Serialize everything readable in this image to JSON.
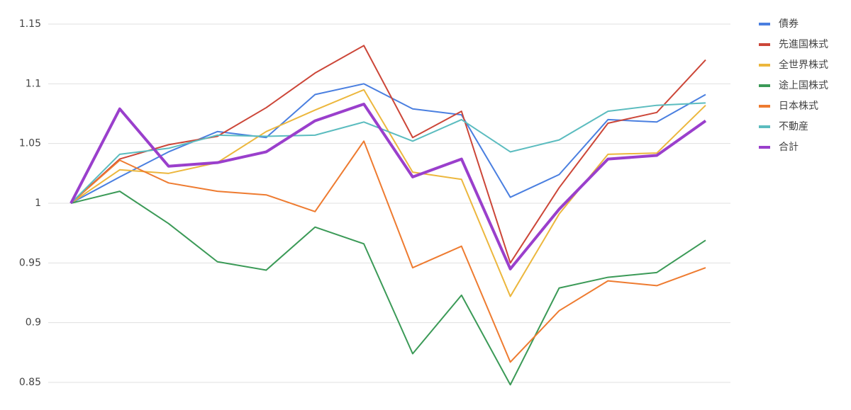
{
  "chart_data": {
    "type": "line",
    "categories": [
      null,
      null,
      null,
      null,
      null,
      null,
      null,
      null,
      null,
      null,
      null,
      null,
      null,
      null
    ],
    "series": [
      {
        "name": "債券",
        "color": "#4a7fe0",
        "width": 2,
        "values": [
          1.0,
          1.022,
          1.043,
          1.06,
          1.055,
          1.091,
          1.1,
          1.079,
          1.074,
          1.005,
          1.024,
          1.07,
          1.068,
          1.091
        ]
      },
      {
        "name": "先進国株式",
        "color": "#cc4638",
        "width": 2,
        "values": [
          1.0,
          1.037,
          1.049,
          1.056,
          1.08,
          1.109,
          1.132,
          1.055,
          1.077,
          0.95,
          1.013,
          1.067,
          1.076,
          1.12
        ]
      },
      {
        "name": "全世界株式",
        "color": "#ecb73d",
        "width": 2,
        "values": [
          1.0,
          1.028,
          1.025,
          1.034,
          1.06,
          1.078,
          1.095,
          1.026,
          1.02,
          0.922,
          0.991,
          1.041,
          1.042,
          1.082
        ]
      },
      {
        "name": "途上国株式",
        "color": "#3b9a57",
        "width": 2,
        "values": [
          1.0,
          1.01,
          0.983,
          0.951,
          0.944,
          0.98,
          0.966,
          0.874,
          0.923,
          0.848,
          0.929,
          0.938,
          0.942,
          0.969
        ]
      },
      {
        "name": "日本株式",
        "color": "#ee7b30",
        "width": 2,
        "values": [
          1.0,
          1.036,
          1.017,
          1.01,
          1.007,
          0.993,
          1.052,
          0.946,
          0.964,
          0.867,
          0.91,
          0.935,
          0.931,
          0.946
        ]
      },
      {
        "name": "不動産",
        "color": "#5bbcbf",
        "width": 2,
        "values": [
          1.0,
          1.041,
          1.046,
          1.057,
          1.056,
          1.057,
          1.068,
          1.052,
          1.07,
          1.043,
          1.053,
          1.077,
          1.082,
          1.084
        ]
      },
      {
        "name": "合計",
        "color": "#9a3fcc",
        "width": 4,
        "values": [
          1.0,
          1.079,
          1.031,
          1.034,
          1.043,
          1.069,
          1.083,
          1.022,
          1.037,
          0.945,
          0.995,
          1.037,
          1.04,
          1.069
        ]
      }
    ],
    "ylim": [
      0.85,
      1.15
    ],
    "yticks": [
      0.85,
      0.9,
      0.95,
      1,
      1.05,
      1.1,
      1.15
    ],
    "grid": true,
    "legend": "right"
  }
}
